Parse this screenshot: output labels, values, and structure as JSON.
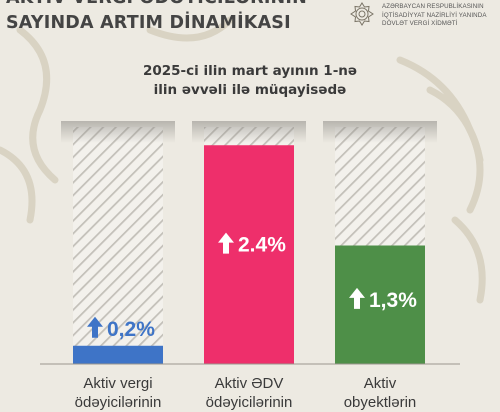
{
  "header": {
    "title_lines": [
      "AKTİV VERGİ ÖDƏYİCİLƏRİNİN",
      "SAYINDA ARTIM DİNAMİKASI"
    ],
    "org_lines": [
      "AZƏRBAYCAN RESPUBLİKASININ",
      "İQTİSADİYYAT NAZİRLİYİ YANINDA",
      "DÖVLƏT VERGİ XİDMƏTİ"
    ],
    "emblem_icon": "tax-service-emblem-icon"
  },
  "chart_data": {
    "type": "bar",
    "subtitle_lines": [
      "2025-ci ilin mart ayının 1-nə",
      "ilin əvvəli ilə müqayisədə"
    ],
    "categories": [
      [
        "Aktiv vergi",
        "ödəyicilərinin"
      ],
      [
        "Aktiv ƏDV",
        "ödəyicilərinin"
      ],
      [
        "Aktiv",
        "obyektlərin"
      ]
    ],
    "values": [
      0.2,
      2.4,
      1.3
    ],
    "value_labels": [
      "0,2%",
      "2.4%",
      "1,3%"
    ],
    "colors": [
      "#3e74c7",
      "#ee2f6b",
      "#4e8f48"
    ],
    "label_colors": [
      "#3e74c7",
      "#ffffff",
      "#ffffff"
    ],
    "arrow_icon": "up-arrow-icon",
    "ylim": [
      0,
      2.6
    ],
    "background_bars": "hatched",
    "grid": false
  }
}
